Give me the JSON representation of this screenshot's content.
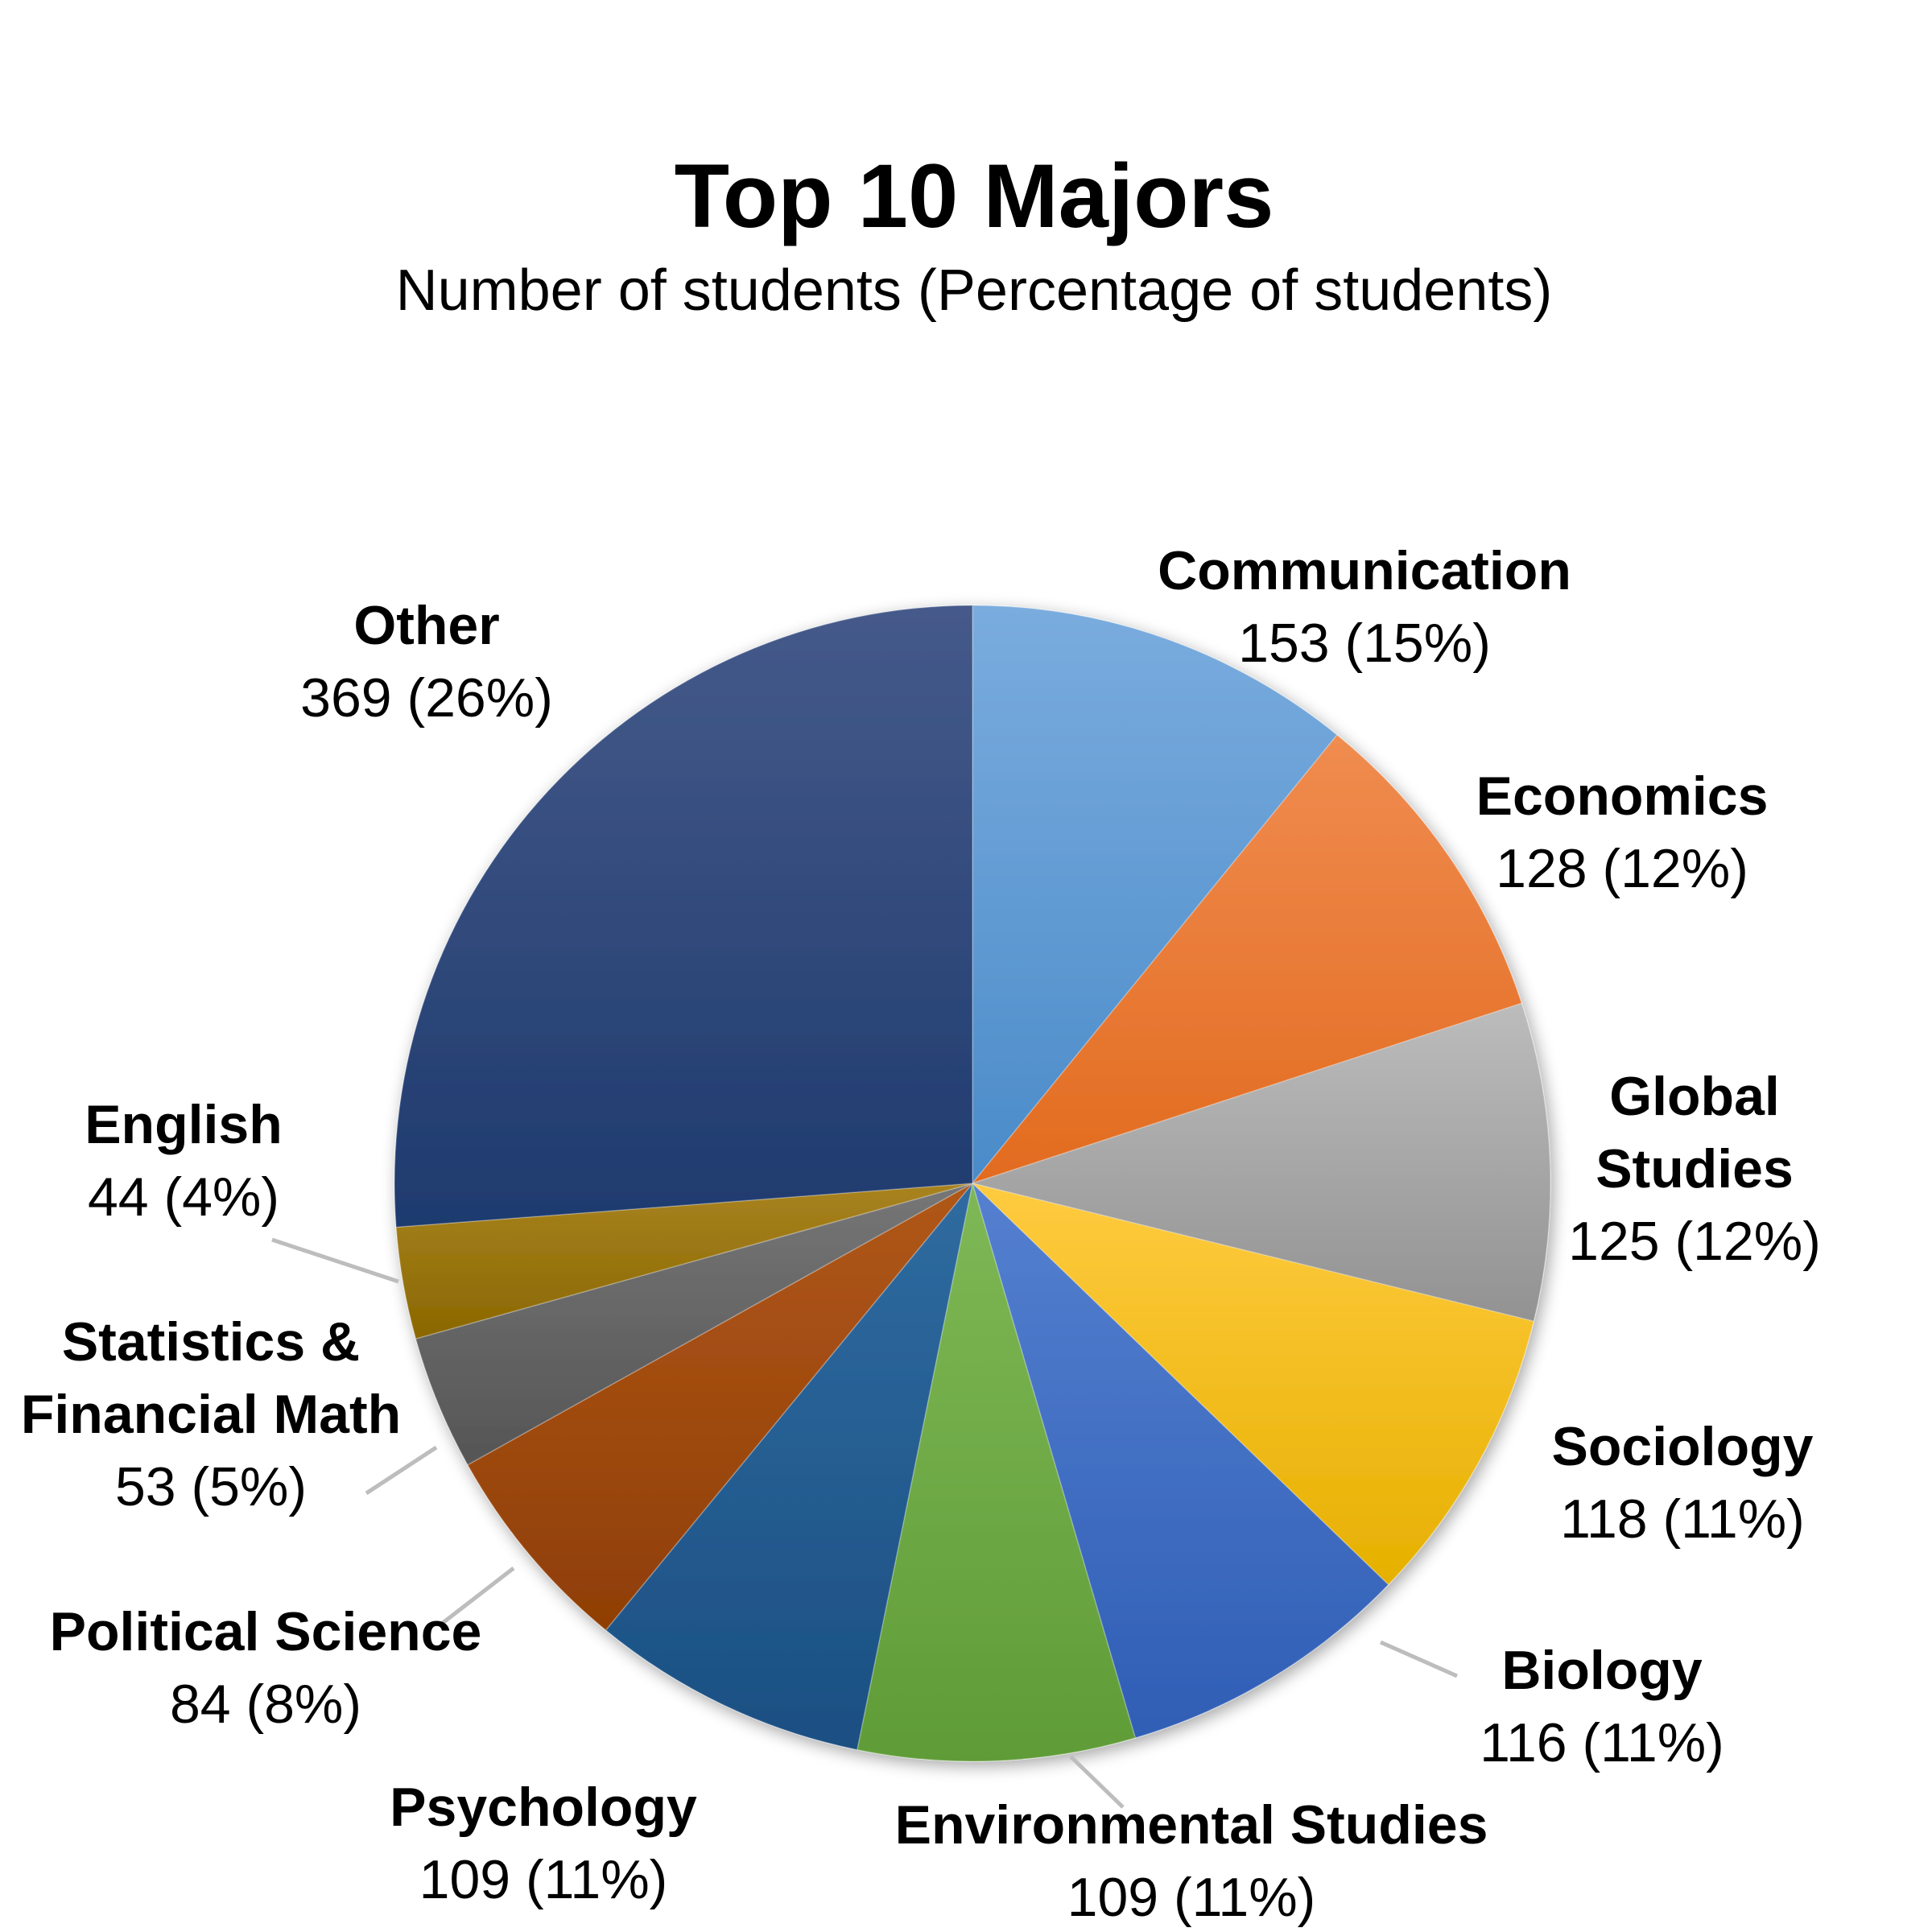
{
  "chart_data": {
    "type": "pie",
    "title": "Top 10 Majors",
    "subtitle": "Number of students (Percentage of students)",
    "start_angle_deg": 0,
    "direction": "clockwise",
    "slices": [
      {
        "label": [
          "Communication"
        ],
        "value": 153,
        "value_text": "153 (15%)",
        "color": "#5b9bd5",
        "color_light": "#7aacde",
        "color_dark": "#4a8bc9"
      },
      {
        "label": [
          "Economics"
        ],
        "value": 128,
        "value_text": "128 (12%)",
        "color": "#ed7d31",
        "color_light": "#f08c50",
        "color_dark": "#e26b1f"
      },
      {
        "label": [
          "Global",
          "Studies"
        ],
        "value": 125,
        "value_text": "125 (12%)",
        "color": "#a5a5a5",
        "color_light": "#bcbcbc",
        "color_dark": "#929292"
      },
      {
        "label": [
          "Sociology"
        ],
        "value": 118,
        "value_text": "118 (11%)",
        "color": "#ffc000",
        "color_light": "#ffcb40",
        "color_dark": "#e6b000"
      },
      {
        "label": [
          "Biology"
        ],
        "value": 116,
        "value_text": "116 (11%)",
        "color": "#4472c4",
        "color_light": "#5580d0",
        "color_dark": "#2f5eb5"
      },
      {
        "label": [
          "Environmental Studies"
        ],
        "value": 109,
        "value_text": "109 (11%)",
        "color": "#70ad47",
        "color_light": "#7eb856",
        "color_dark": "#5f9c37"
      },
      {
        "label": [
          "Psychology"
        ],
        "value": 109,
        "value_text": "109 (11%)",
        "color": "#255e91",
        "color_light": "#2f6ba0",
        "color_dark": "#1b4f82"
      },
      {
        "label": [
          "Political Science"
        ],
        "value": 84,
        "value_text": "84 (8%)",
        "color": "#9e480e",
        "color_light": "#b0571a",
        "color_dark": "#8f3e05"
      },
      {
        "label": [
          "Statistics &",
          "Financial Math"
        ],
        "value": 53,
        "value_text": "53 (5%)",
        "color": "#636363",
        "color_light": "#767676",
        "color_dark": "#555555"
      },
      {
        "label": [
          "English"
        ],
        "value": 44,
        "value_text": "44 (4%)",
        "color": "#997300",
        "color_light": "#a88320",
        "color_dark": "#8a6700"
      },
      {
        "label": [
          "Other"
        ],
        "value": 369,
        "value_text": "369 (26%)",
        "color": "#264478",
        "color_light": "#455a8a",
        "color_dark": "#1e3a6e"
      }
    ]
  }
}
